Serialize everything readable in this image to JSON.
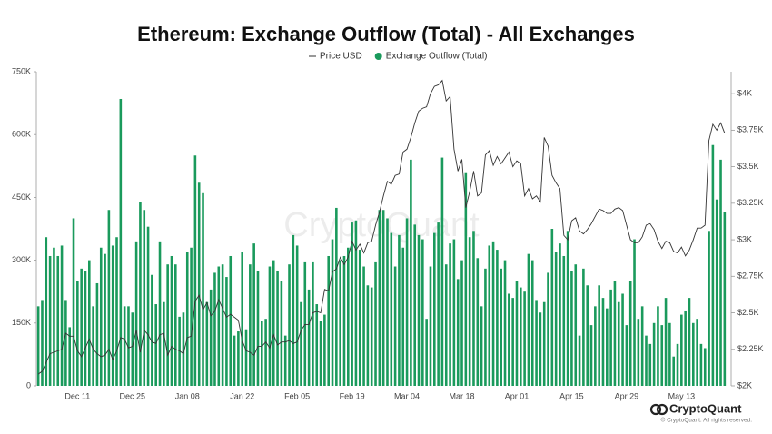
{
  "chart_data": {
    "type": "bar",
    "title": "Ethereum: Exchange Outflow (Total) - All Exchanges",
    "watermark": "CryptoQuant",
    "brand": "CryptoQuant",
    "copyright": "© CryptoQuant. All rights reserved.",
    "categories": [
      null,
      null,
      null,
      null,
      null,
      null,
      null,
      null,
      null,
      null,
      "Dec 11",
      null,
      null,
      null,
      null,
      null,
      null,
      null,
      null,
      null,
      null,
      null,
      null,
      null,
      "Dec 25",
      null,
      null,
      null,
      null,
      null,
      null,
      null,
      null,
      null,
      null,
      null,
      null,
      null,
      "Jan 08",
      null,
      null,
      null,
      null,
      null,
      null,
      null,
      null,
      null,
      null,
      null,
      null,
      null,
      "Jan 22",
      null,
      null,
      null,
      null,
      null,
      null,
      null,
      null,
      null,
      null,
      null,
      null,
      null,
      "Feb 05",
      null,
      null,
      null,
      null,
      null,
      null,
      null,
      null,
      null,
      null,
      null,
      null,
      null,
      "Feb 19",
      null,
      null,
      null,
      null,
      null,
      null,
      null,
      null,
      null,
      null,
      null,
      null,
      null,
      "Mar 04",
      null,
      null,
      null,
      null,
      null,
      null,
      null,
      null,
      null,
      null,
      null,
      null,
      null,
      "Mar 18",
      null,
      null,
      null,
      null,
      null,
      null,
      null,
      null,
      null,
      null,
      null,
      null,
      null,
      "Apr 01",
      null,
      null,
      null,
      null,
      null,
      null,
      null,
      null,
      null,
      null,
      null,
      null,
      null,
      "Apr 15",
      null,
      null,
      null,
      null,
      null,
      null,
      null,
      null,
      null,
      null,
      null,
      null,
      null,
      "Apr 29",
      null,
      null,
      null,
      null,
      null,
      null,
      null,
      null,
      null,
      null,
      null,
      null,
      null,
      "May 13",
      null,
      null,
      null,
      null,
      null,
      null,
      null,
      null,
      null,
      null,
      null
    ],
    "series": [
      {
        "name": "Price USD",
        "type": "line",
        "axis": "y2",
        "color": "#333333",
        "values": [
          2080,
          2100,
          2160,
          2220,
          2230,
          2240,
          2250,
          2360,
          2340,
          2340,
          2240,
          2200,
          2260,
          2320,
          2250,
          2220,
          2200,
          2210,
          2250,
          2180,
          2240,
          2330,
          2320,
          2260,
          2270,
          2380,
          2230,
          2380,
          2350,
          2300,
          2290,
          2350,
          2360,
          2210,
          2270,
          2250,
          2240,
          2220,
          2330,
          2340,
          2580,
          2620,
          2520,
          2570,
          2480,
          2510,
          2590,
          2530,
          2470,
          2490,
          2470,
          2450,
          2310,
          2240,
          2230,
          2210,
          2270,
          2270,
          2300,
          2260,
          2350,
          2280,
          2300,
          2300,
          2310,
          2290,
          2300,
          2380,
          2420,
          2420,
          2500,
          2510,
          2500,
          2660,
          2650,
          2780,
          2800,
          2880,
          2830,
          2880,
          2990,
          2930,
          2970,
          2910,
          2980,
          2990,
          3100,
          3190,
          3300,
          3400,
          3380,
          3440,
          3450,
          3600,
          3620,
          3700,
          3800,
          3880,
          3900,
          3910,
          4000,
          4050,
          4060,
          4090,
          3950,
          3980,
          3620,
          3470,
          3550,
          3220,
          3330,
          3470,
          3300,
          3320,
          3580,
          3610,
          3510,
          3570,
          3520,
          3560,
          3600,
          3500,
          3540,
          3520,
          3300,
          3350,
          3280,
          3300,
          3260,
          3700,
          3640,
          3440,
          3390,
          3350,
          3030,
          3000,
          3130,
          3150,
          3060,
          3040,
          3070,
          3110,
          3160,
          3210,
          3200,
          3180,
          3180,
          3210,
          3220,
          3200,
          3100,
          3000,
          2980,
          2980,
          3020,
          3100,
          3110,
          3070,
          2990,
          2940,
          2990,
          2980,
          2920,
          2910,
          2950,
          2890,
          2930,
          3000,
          3080,
          3080,
          3100,
          3680,
          3790,
          3750,
          3800,
          3730
        ]
      },
      {
        "name": "Exchange Outflow (Total)",
        "type": "bar",
        "color": "#1a9a5c",
        "values": [
          190000,
          205000,
          355000,
          310000,
          330000,
          310000,
          335000,
          205000,
          140000,
          400000,
          250000,
          280000,
          275000,
          300000,
          190000,
          245000,
          330000,
          315000,
          420000,
          335000,
          355000,
          685000,
          190000,
          190000,
          175000,
          345000,
          440000,
          420000,
          380000,
          265000,
          195000,
          345000,
          200000,
          290000,
          310000,
          290000,
          165000,
          175000,
          320000,
          330000,
          550000,
          485000,
          460000,
          200000,
          230000,
          270000,
          285000,
          290000,
          260000,
          310000,
          120000,
          130000,
          320000,
          135000,
          290000,
          340000,
          275000,
          155000,
          160000,
          285000,
          300000,
          275000,
          250000,
          120000,
          290000,
          360000,
          335000,
          200000,
          295000,
          230000,
          295000,
          195000,
          155000,
          170000,
          310000,
          350000,
          425000,
          300000,
          310000,
          330000,
          390000,
          395000,
          325000,
          285000,
          240000,
          235000,
          295000,
          420000,
          420000,
          400000,
          365000,
          285000,
          360000,
          330000,
          400000,
          540000,
          385000,
          360000,
          350000,
          160000,
          285000,
          365000,
          390000,
          545000,
          290000,
          340000,
          350000,
          255000,
          300000,
          510000,
          355000,
          370000,
          305000,
          190000,
          280000,
          335000,
          345000,
          325000,
          280000,
          300000,
          220000,
          210000,
          250000,
          235000,
          225000,
          315000,
          300000,
          205000,
          175000,
          200000,
          270000,
          375000,
          320000,
          340000,
          310000,
          370000,
          275000,
          290000,
          120000,
          280000,
          240000,
          145000,
          190000,
          240000,
          210000,
          185000,
          230000,
          250000,
          200000,
          220000,
          145000,
          250000,
          350000,
          160000,
          190000,
          120000,
          100000,
          150000,
          190000,
          145000,
          210000,
          150000,
          70000,
          100000,
          170000,
          180000,
          210000,
          150000,
          160000,
          100000,
          90000,
          370000,
          575000,
          445000,
          540000,
          415000
        ]
      }
    ],
    "ylim": [
      0,
      750000
    ],
    "yticks": [
      {
        "value": 0,
        "label": "0"
      },
      {
        "value": 150000,
        "label": "150K"
      },
      {
        "value": 300000,
        "label": "300K"
      },
      {
        "value": 450000,
        "label": "450K"
      },
      {
        "value": 600000,
        "label": "600K"
      },
      {
        "value": 750000,
        "label": "750K"
      }
    ],
    "y2lim": [
      2000,
      4150
    ],
    "y2ticks": [
      {
        "value": 2000,
        "label": "$2K"
      },
      {
        "value": 2250,
        "label": "$2.25K"
      },
      {
        "value": 2500,
        "label": "$2.5K"
      },
      {
        "value": 2750,
        "label": "$2.75K"
      },
      {
        "value": 3000,
        "label": "$3K"
      },
      {
        "value": 3250,
        "label": "$3.25K"
      },
      {
        "value": 3500,
        "label": "$3.5K"
      },
      {
        "value": 3750,
        "label": "$3.75K"
      },
      {
        "value": 4000,
        "label": "$4K"
      }
    ]
  }
}
